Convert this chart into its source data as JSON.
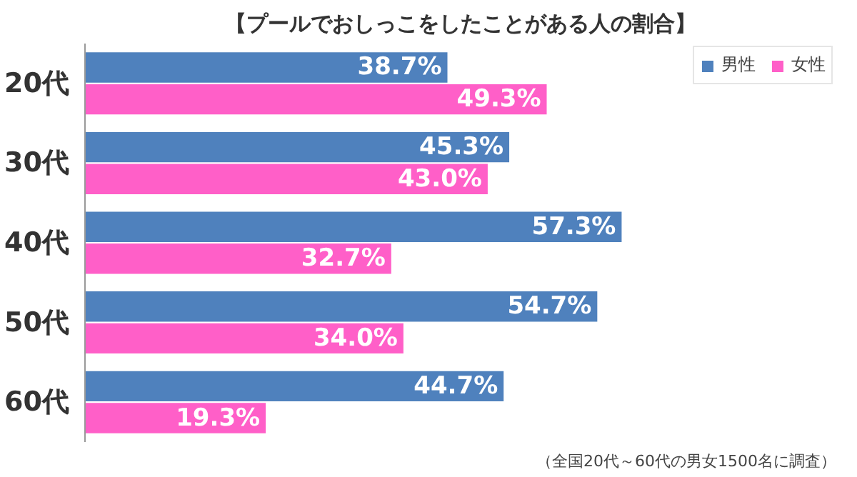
{
  "chart_data": {
    "type": "bar",
    "orientation": "horizontal",
    "title": "【プールでおしっこをしたことがある人の割合】",
    "categories": [
      "20代",
      "30代",
      "40代",
      "50代",
      "60代"
    ],
    "series": [
      {
        "name": "男性",
        "color": "#4f81bd",
        "values": [
          38.7,
          45.3,
          57.3,
          54.7,
          44.7
        ],
        "value_labels": [
          "38.7%",
          "45.3%",
          "57.3%",
          "54.7%",
          "44.7%"
        ]
      },
      {
        "name": "女性",
        "color": "#ff5fc8",
        "values": [
          49.3,
          43.0,
          32.7,
          34.0,
          19.3
        ],
        "value_labels": [
          "49.3%",
          "43.0%",
          "32.7%",
          "34.0%",
          "19.3%"
        ]
      }
    ],
    "legend": "top right",
    "annotations": [
      "（全国20代～60代の男女1500名に調査）"
    ]
  }
}
